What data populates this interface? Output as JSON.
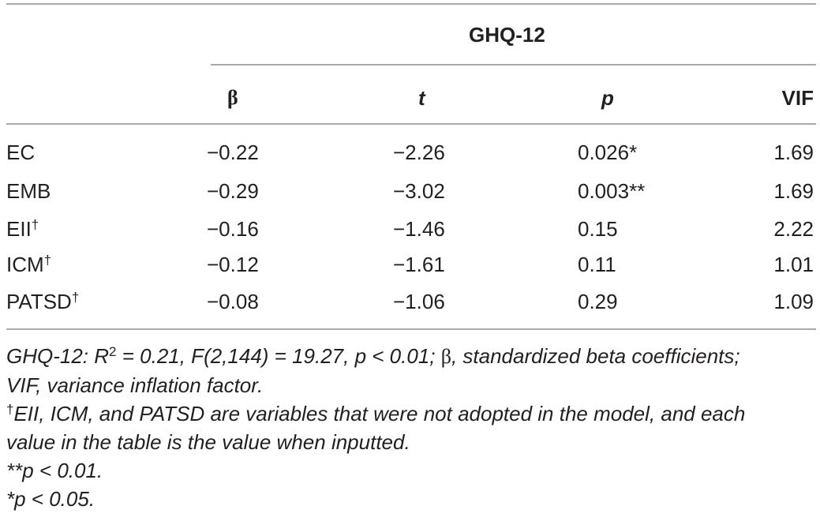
{
  "table": {
    "group_header": "GHQ-12",
    "columns": [
      "β",
      "t",
      "p",
      "VIF"
    ],
    "rows": [
      {
        "label": "EC",
        "dagger": "",
        "beta": "−0.22",
        "t": "−2.26",
        "p": "0.026*",
        "vif": "1.69"
      },
      {
        "label": "EMB",
        "dagger": "",
        "beta": "−0.29",
        "t": "−3.02",
        "p": "0.003**",
        "vif": "1.69"
      },
      {
        "label": "EII",
        "dagger": "†",
        "beta": "−0.16",
        "t": "−1.46",
        "p": "0.15",
        "vif": "2.22"
      },
      {
        "label": "ICM",
        "dagger": "†",
        "beta": "−0.12",
        "t": "−1.61",
        "p": "0.11",
        "vif": "1.01"
      },
      {
        "label": "PATSD",
        "dagger": "†",
        "beta": "−0.08",
        "t": "−1.06",
        "p": "0.29",
        "vif": "1.09"
      }
    ]
  },
  "footnotes": {
    "line1_a": "GHQ-12: R",
    "line1_sup": "2",
    "line1_b": " = 0.21, F(2,144) = 19.27, p < 0.01; ",
    "line1_beta": "β",
    "line1_c": ", standardized beta coefficients;",
    "line2": "VIF, variance inflation factor.",
    "dagger_mark": "†",
    "line3": "EII, ICM, and PATSD are variables that were not adopted in the model, and each",
    "line4": "value in the table is the value when inputted.",
    "line5": "**p < 0.01.",
    "line6": "*p < 0.05."
  }
}
